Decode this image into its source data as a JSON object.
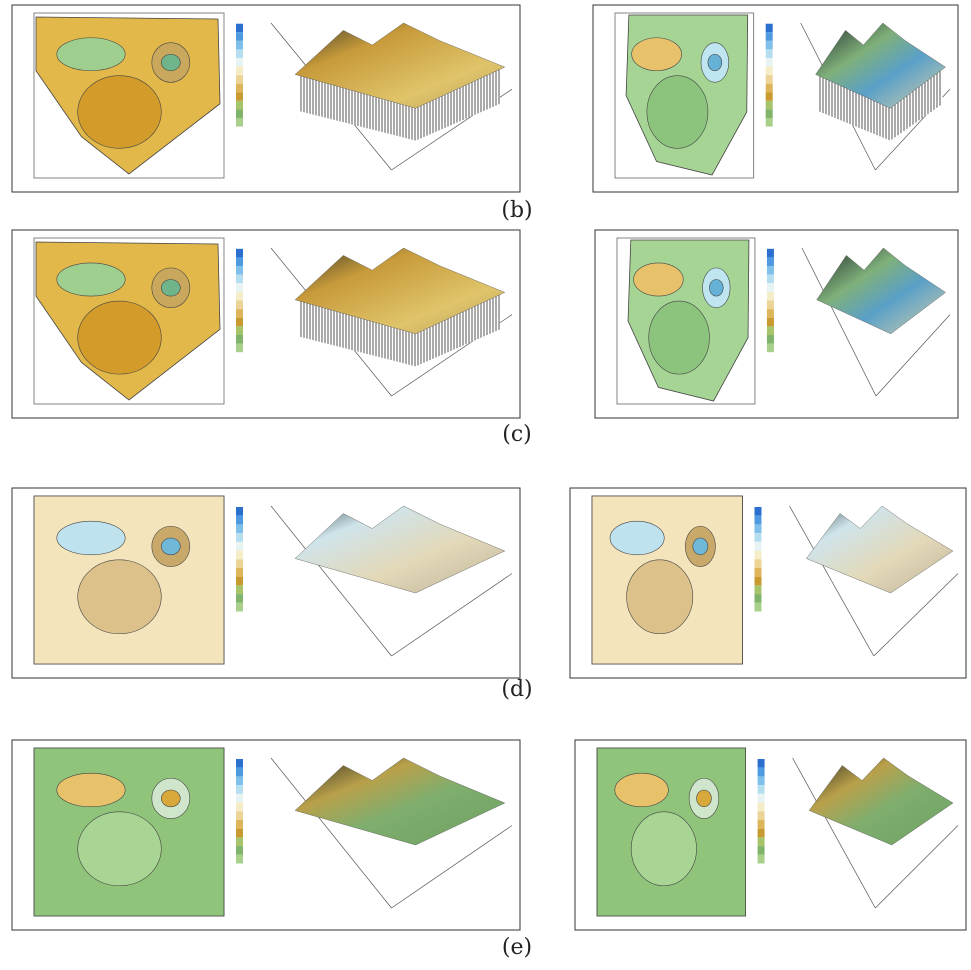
{
  "captions": [
    "(b)",
    "(c)",
    "(d)",
    "(e)"
  ]
}
